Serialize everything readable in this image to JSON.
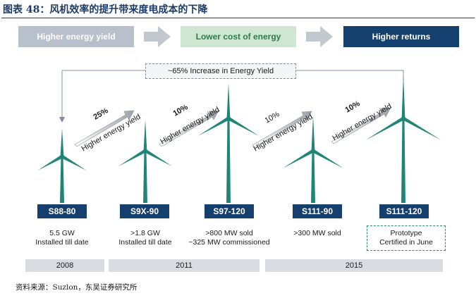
{
  "caption": "图表 48：风机效率的提升带来度电成本的下降",
  "flow": [
    {
      "label": "Higher energy yield"
    },
    {
      "label": "Lower cost of energy"
    },
    {
      "label": "Higher returns"
    }
  ],
  "increase_label": "~65% Increase in Energy Yield",
  "steps": [
    {
      "pct": "25%",
      "text": "Higher energy yield"
    },
    {
      "pct": "10%",
      "text": "Higher energy yield"
    },
    {
      "pct": "10%",
      "text": "Higher energy yield"
    },
    {
      "pct": "10%",
      "text": "Higher energy yield"
    }
  ],
  "models": [
    {
      "name": "S88-80",
      "line1": "5.5 GW",
      "line2": "Installed till date"
    },
    {
      "name": "S9X-90",
      "line1": ">1.8 GW",
      "line2": "Installed till date"
    },
    {
      "name": "S97-120",
      "line1": ">800 MW sold",
      "line2": "~325 MW commissioned"
    },
    {
      "name": "S111-90",
      "line1": ">300 MW sold",
      "line2": ""
    },
    {
      "name": "S111-120",
      "line1": "Prototype",
      "line2": "Certified in June"
    }
  ],
  "years": [
    "2008",
    "2011",
    "2015"
  ],
  "source": "资料来源：Suzlon，东吴证券研究所",
  "colors": {
    "navy": "#153f6d",
    "turbine": "#1f8577",
    "grey_box": "#b7c0cb",
    "green_box": "#cfe7d2"
  }
}
